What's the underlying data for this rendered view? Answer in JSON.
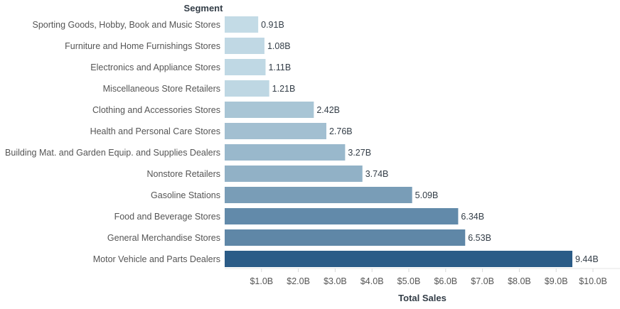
{
  "chart_data": {
    "type": "bar",
    "orientation": "horizontal",
    "row_header": "Segment",
    "xlabel": "Total Sales",
    "xlim": [
      0,
      10
    ],
    "x_ticks": [
      1,
      2,
      3,
      4,
      5,
      6,
      7,
      8,
      9,
      10
    ],
    "x_tick_labels": [
      "$1.0B",
      "$2.0B",
      "$3.0B",
      "$4.0B",
      "$5.0B",
      "$6.0B",
      "$7.0B",
      "$8.0B",
      "$9.0B",
      "$10.0B"
    ],
    "categories": [
      "Sporting Goods, Hobby, Book and Music Stores",
      "Furniture and Home Furnishings Stores",
      "Electronics and Appliance Stores",
      "Miscellaneous Store Retailers",
      "Clothing and Accessories Stores",
      "Health and Personal Care Stores",
      "Building Mat. and Garden Equip. and Supplies Dealers",
      "Nonstore Retailers",
      "Gasoline Stations",
      "Food and Beverage Stores",
      "General Merchandise Stores",
      "Motor Vehicle and Parts Dealers"
    ],
    "values": [
      0.91,
      1.08,
      1.11,
      1.21,
      2.42,
      2.76,
      3.27,
      3.74,
      5.09,
      6.34,
      6.53,
      9.44
    ],
    "value_labels": [
      "0.91B",
      "1.08B",
      "1.11B",
      "1.21B",
      "2.42B",
      "2.76B",
      "3.27B",
      "3.74B",
      "5.09B",
      "6.34B",
      "6.53B",
      "9.44B"
    ],
    "color_scale": [
      "#c3dbe6",
      "#2b5c87"
    ],
    "grid": false,
    "legend": "none"
  }
}
